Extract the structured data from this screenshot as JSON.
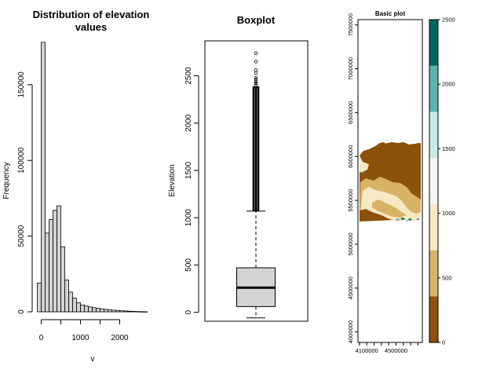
{
  "colors": {
    "hist_bar": "#d3d3d3",
    "box_fill": "#d3d3d3",
    "axis": "#000000",
    "palette": [
      "#8c510a",
      "#d8b365",
      "#f6e8c3",
      "#f5f5f5",
      "#c7eae5",
      "#5ab4ac",
      "#01665e"
    ]
  },
  "chart_data": [
    {
      "type": "bar",
      "title": "Distribution of elevation values",
      "xlabel": "v",
      "ylabel": "Frequency",
      "xticks": [
        0,
        1000,
        2000
      ],
      "yticks": [
        0,
        50000,
        100000,
        150000
      ],
      "xlim": [
        -150,
        2750
      ],
      "ylim": [
        0,
        180000
      ],
      "bin_width": 100,
      "bins": [
        {
          "x0": -100,
          "x1": 0,
          "count": 19000
        },
        {
          "x0": 0,
          "x1": 100,
          "count": 178000
        },
        {
          "x0": 100,
          "x1": 200,
          "count": 52000
        },
        {
          "x0": 200,
          "x1": 300,
          "count": 61000
        },
        {
          "x0": 300,
          "x1": 400,
          "count": 67000
        },
        {
          "x0": 400,
          "x1": 500,
          "count": 70000
        },
        {
          "x0": 500,
          "x1": 600,
          "count": 43000
        },
        {
          "x0": 600,
          "x1": 700,
          "count": 21000
        },
        {
          "x0": 700,
          "x1": 800,
          "count": 13000
        },
        {
          "x0": 800,
          "x1": 900,
          "count": 9000
        },
        {
          "x0": 900,
          "x1": 1000,
          "count": 6000
        },
        {
          "x0": 1000,
          "x1": 1100,
          "count": 4500
        },
        {
          "x0": 1100,
          "x1": 1200,
          "count": 3800
        },
        {
          "x0": 1200,
          "x1": 1300,
          "count": 3200
        },
        {
          "x0": 1300,
          "x1": 1400,
          "count": 2700
        },
        {
          "x0": 1400,
          "x1": 1500,
          "count": 2300
        },
        {
          "x0": 1500,
          "x1": 1600,
          "count": 1900
        },
        {
          "x0": 1600,
          "x1": 1700,
          "count": 1600
        },
        {
          "x0": 1700,
          "x1": 1800,
          "count": 1300
        },
        {
          "x0": 1800,
          "x1": 1900,
          "count": 1100
        },
        {
          "x0": 1900,
          "x1": 2000,
          "count": 900
        },
        {
          "x0": 2000,
          "x1": 2100,
          "count": 700
        },
        {
          "x0": 2100,
          "x1": 2200,
          "count": 550
        },
        {
          "x0": 2200,
          "x1": 2300,
          "count": 400
        },
        {
          "x0": 2300,
          "x1": 2400,
          "count": 300
        },
        {
          "x0": 2400,
          "x1": 2500,
          "count": 200
        },
        {
          "x0": 2500,
          "x1": 2600,
          "count": 120
        },
        {
          "x0": 2600,
          "x1": 2700,
          "count": 60
        }
      ]
    },
    {
      "type": "boxplot",
      "title": "Boxplot",
      "ylabel": "Elevation",
      "yticks": [
        0,
        500,
        1000,
        1500,
        2000,
        2500
      ],
      "ylim": [
        -95,
        2870
      ],
      "stats": {
        "min": -60,
        "q1": 60,
        "median": 260,
        "q3": 470,
        "whisker_high": 1070
      },
      "outlier_range": [
        1075,
        2380
      ],
      "outliers_sparse": [
        2400,
        2420,
        2440,
        2460,
        2480,
        2530,
        2560,
        2650,
        2740
      ]
    },
    {
      "type": "heatmap",
      "title": "Basic plot",
      "xticks": [
        4100000,
        4500000
      ],
      "yticks": [
        4000000,
        4500000,
        5000000,
        5500000,
        6000000,
        6500000,
        7000000,
        7500000
      ],
      "xlim": [
        3980000,
        4860000
      ],
      "ylim": [
        3880000,
        7560000
      ],
      "legend_ticks": [
        0,
        500,
        1000,
        1500,
        2000,
        2500
      ],
      "legend_breaks": [
        0,
        357,
        714,
        1071,
        1429,
        1786,
        2143,
        2500
      ]
    }
  ]
}
